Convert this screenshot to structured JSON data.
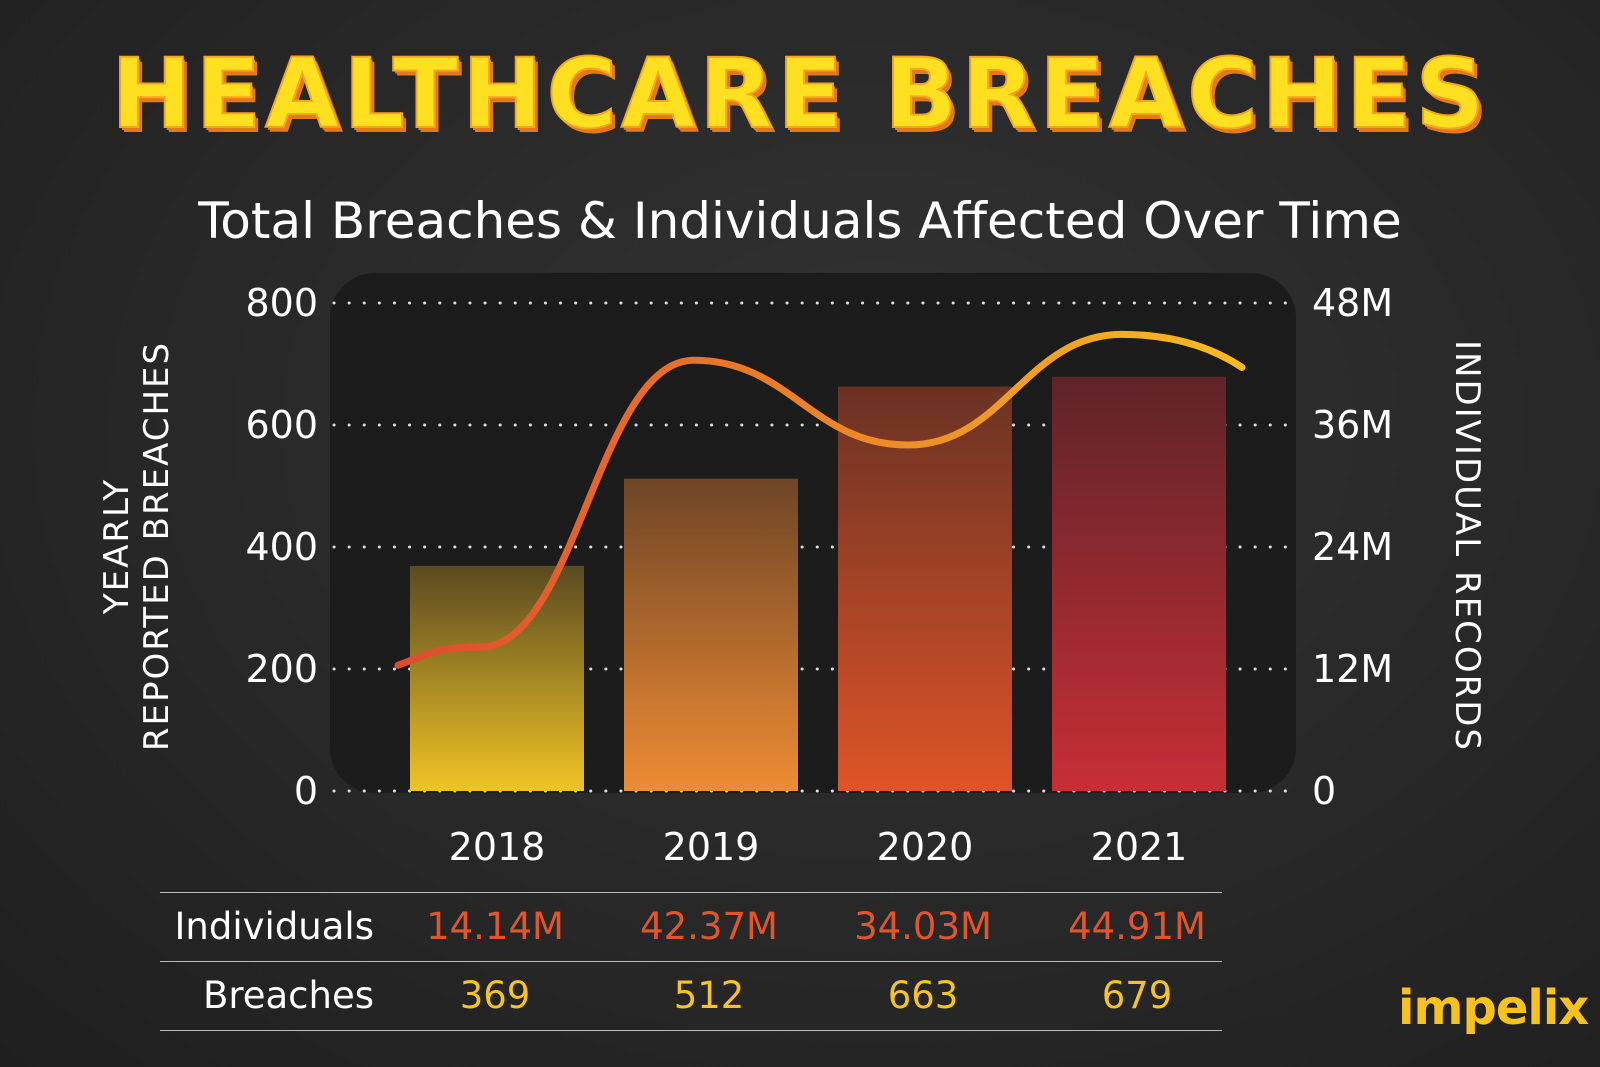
{
  "title": "HEALTHCARE BREACHES",
  "brand": "impelix",
  "colors": {
    "title": "#FFE020",
    "title_shadow": "#E4781A",
    "individuals_text": "#E2552C",
    "breaches_text": "#F5C326",
    "line_start": "#E04A2E",
    "line_end": "#F6BC22"
  },
  "chart_data": {
    "type": "bar",
    "title": "Total Breaches & Individuals Affected Over Time",
    "categories": [
      "2018",
      "2019",
      "2020",
      "2021"
    ],
    "ylabel_lines": [
      "YEARLY",
      "REPORTED BREACHES"
    ],
    "y2label": "INDIVIDUAL RECORDS",
    "ylim": [
      0,
      800
    ],
    "y_ticks": [
      "0",
      "200",
      "400",
      "600",
      "800"
    ],
    "y2lim": [
      0,
      48
    ],
    "y2_ticks": [
      "0",
      "12M",
      "24M",
      "36M",
      "48M"
    ],
    "grid": "dotted",
    "series": [
      {
        "name": "Breaches",
        "type": "bar",
        "axis": "left",
        "values": [
          369,
          512,
          663,
          679
        ],
        "gradient_top": [
          "#5A4A22",
          "#6E4526",
          "#6A3224",
          "#5E2429"
        ],
        "gradient_bottom": [
          "#F0C425",
          "#EE8C33",
          "#DE5427",
          "#C72E36"
        ]
      },
      {
        "name": "Individuals",
        "type": "line",
        "axis": "right",
        "unit": "M",
        "values": [
          14.14,
          42.37,
          34.03,
          44.91
        ]
      }
    ]
  },
  "table": {
    "rows": [
      {
        "label": "Individuals",
        "values": [
          "14.14M",
          "42.37M",
          "34.03M",
          "44.91M"
        ]
      },
      {
        "label": "Breaches",
        "values": [
          "369",
          "512",
          "663",
          "679"
        ]
      }
    ]
  }
}
